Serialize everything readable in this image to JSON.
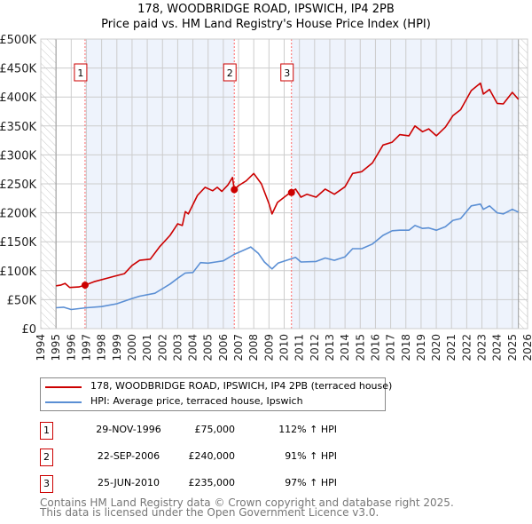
{
  "chart_data": {
    "type": "line",
    "title": "178, WOODBRIDGE ROAD, IPSWICH, IP4 2PB",
    "subtitle": "Price paid vs. HM Land Registry's House Price Index (HPI)",
    "xlim": [
      1994,
      2026
    ],
    "ylim": [
      0,
      500000
    ],
    "x_ticks": [
      "1994",
      "1995",
      "1996",
      "1997",
      "1998",
      "1999",
      "2000",
      "2001",
      "2002",
      "2003",
      "2004",
      "2005",
      "2006",
      "2007",
      "2008",
      "2009",
      "2010",
      "2011",
      "2012",
      "2013",
      "2014",
      "2015",
      "2016",
      "2017",
      "2018",
      "2019",
      "2020",
      "2021",
      "2022",
      "2023",
      "2024",
      "2025",
      "2026"
    ],
    "y_ticks": [
      {
        "value": 0,
        "label": "£0"
      },
      {
        "value": 50000,
        "label": "£50K"
      },
      {
        "value": 100000,
        "label": "£100K"
      },
      {
        "value": 150000,
        "label": "£150K"
      },
      {
        "value": 200000,
        "label": "£200K"
      },
      {
        "value": 250000,
        "label": "£250K"
      },
      {
        "value": 300000,
        "label": "£300K"
      },
      {
        "value": 350000,
        "label": "£350K"
      },
      {
        "value": 400000,
        "label": "£400K"
      },
      {
        "value": 450000,
        "label": "£450K"
      },
      {
        "value": 500000,
        "label": "£500K"
      }
    ],
    "grid": true,
    "data_range": [
      1995.0,
      2025.4
    ],
    "series": [
      {
        "name": "178, WOODBRIDGE ROAD, IPSWICH, IP4 2PB (terraced house)",
        "color": "#cc0000",
        "x": [
          1995.0,
          1995.3,
          1995.6,
          1995.9,
          1996.5,
          1996.9,
          1997.5,
          1998.5,
          1999.5,
          2000.0,
          2000.5,
          2001.2,
          2001.8,
          2002.5,
          2003.0,
          2003.3,
          2003.5,
          2003.7,
          2004.3,
          2004.8,
          2005.3,
          2005.6,
          2005.9,
          2006.3,
          2006.6,
          2006.72,
          2007.0,
          2007.5,
          2008.0,
          2008.5,
          2009.0,
          2009.2,
          2009.56,
          2010.4,
          2010.75,
          2011.1,
          2011.5,
          2012.1,
          2012.7,
          2013.3,
          2014.0,
          2014.5,
          2015.1,
          2015.8,
          2016.5,
          2017.1,
          2017.6,
          2018.2,
          2018.6,
          2019.1,
          2019.5,
          2020.0,
          2020.6,
          2021.1,
          2021.6,
          2022.3,
          2022.9,
          2023.1,
          2023.5,
          2024.0,
          2024.4,
          2025.0,
          2025.4
        ],
        "values": [
          74000,
          75000,
          78000,
          71000,
          72000,
          75000,
          81000,
          88000,
          95000,
          109000,
          118000,
          120000,
          141000,
          161000,
          181000,
          178000,
          202000,
          198000,
          230000,
          244000,
          238000,
          244000,
          237000,
          248000,
          261000,
          240000,
          247000,
          255000,
          268000,
          250000,
          216000,
          198000,
          218000,
          235000,
          241000,
          227000,
          232000,
          227000,
          241000,
          232000,
          245000,
          268000,
          271000,
          286000,
          317000,
          322000,
          335000,
          333000,
          350000,
          340000,
          345000,
          333000,
          348000,
          368000,
          378000,
          411000,
          424000,
          405000,
          413000,
          389000,
          388000,
          408000,
          396000
        ]
      },
      {
        "name": "HPI: Average price, terraced house, Ipswich",
        "color": "#5b8fd4",
        "x": [
          1995.0,
          1995.5,
          1996.0,
          1997.0,
          1998.0,
          1999.0,
          2000.0,
          2000.5,
          2001.5,
          2002.0,
          2002.5,
          2003.0,
          2003.5,
          2004.0,
          2004.5,
          2005.0,
          2005.5,
          2006.0,
          2006.7,
          2007.3,
          2007.8,
          2008.3,
          2008.7,
          2009.2,
          2009.6,
          2010.4,
          2010.75,
          2011.1,
          2012.1,
          2012.7,
          2013.3,
          2014.0,
          2014.5,
          2015.1,
          2015.8,
          2016.5,
          2017.1,
          2017.6,
          2018.2,
          2018.6,
          2019.1,
          2019.5,
          2020.0,
          2020.6,
          2021.1,
          2021.6,
          2022.3,
          2022.9,
          2023.1,
          2023.5,
          2024.0,
          2024.4,
          2025.0,
          2025.4
        ],
        "values": [
          36000,
          37000,
          33000,
          36000,
          38000,
          43000,
          52000,
          56000,
          61000,
          69000,
          77000,
          87000,
          96000,
          97000,
          114000,
          113000,
          115000,
          117000,
          128000,
          135000,
          141000,
          130000,
          115000,
          103000,
          113000,
          120000,
          123000,
          115000,
          116000,
          122000,
          118000,
          124000,
          138000,
          138000,
          146000,
          161000,
          169000,
          170000,
          170000,
          178000,
          173000,
          174000,
          170000,
          176000,
          187000,
          190000,
          212000,
          215000,
          206000,
          212000,
          200000,
          198000,
          206000,
          201000
        ]
      }
    ],
    "sales": [
      {
        "num": "1",
        "x": 1996.91,
        "value": 75000,
        "date": "29-NOV-1996",
        "price": "£75,000",
        "hpi": "112% ↑ HPI"
      },
      {
        "num": "2",
        "x": 2006.72,
        "value": 240000,
        "date": "22-SEP-2006",
        "price": "£240,000",
        "hpi": "91% ↑ HPI"
      },
      {
        "num": "3",
        "x": 2010.48,
        "value": 235000,
        "date": "25-JUN-2010",
        "price": "£235,000",
        "hpi": "97% ↑ HPI"
      }
    ],
    "legend_placement": "bottom"
  },
  "colors": {
    "property": "#cc0000",
    "hpi": "#5b8fd4",
    "shade": "#eef3fc"
  },
  "footer": {
    "line1": "Contains HM Land Registry data © Crown copyright and database right 2025.",
    "line2": "This data is licensed under the Open Government Licence v3.0."
  }
}
